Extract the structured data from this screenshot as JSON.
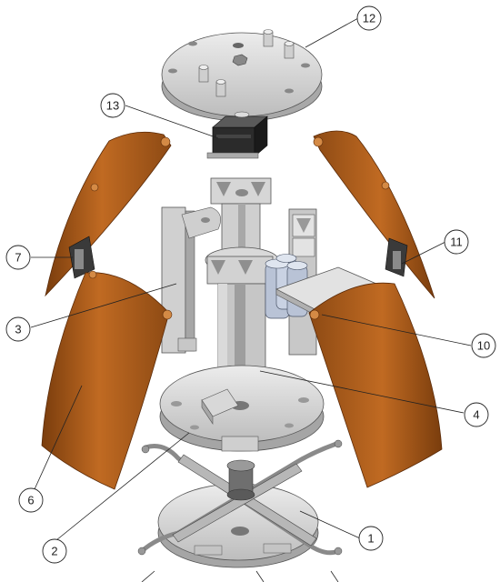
{
  "diagram": {
    "type": "exploded-assembly",
    "colors": {
      "part_gray": "#d4d4d4",
      "part_gray_dark": "#9a9a9a",
      "part_gray_light": "#ececec",
      "blade_orange": "#b8651f",
      "blade_orange_dark": "#7a3d0d",
      "blade_orange_light": "#d48a45",
      "motor_black": "#2b2b2b",
      "line": "#222222"
    },
    "callouts": [
      {
        "id": "c1",
        "label": "1"
      },
      {
        "id": "c2",
        "label": "2"
      },
      {
        "id": "c3",
        "label": "3"
      },
      {
        "id": "c4",
        "label": "4"
      },
      {
        "id": "c6",
        "label": "6"
      },
      {
        "id": "c7",
        "label": "7"
      },
      {
        "id": "c10",
        "label": "10"
      },
      {
        "id": "c11",
        "label": "11"
      },
      {
        "id": "c12",
        "label": "12"
      },
      {
        "id": "c13",
        "label": "13"
      }
    ]
  }
}
